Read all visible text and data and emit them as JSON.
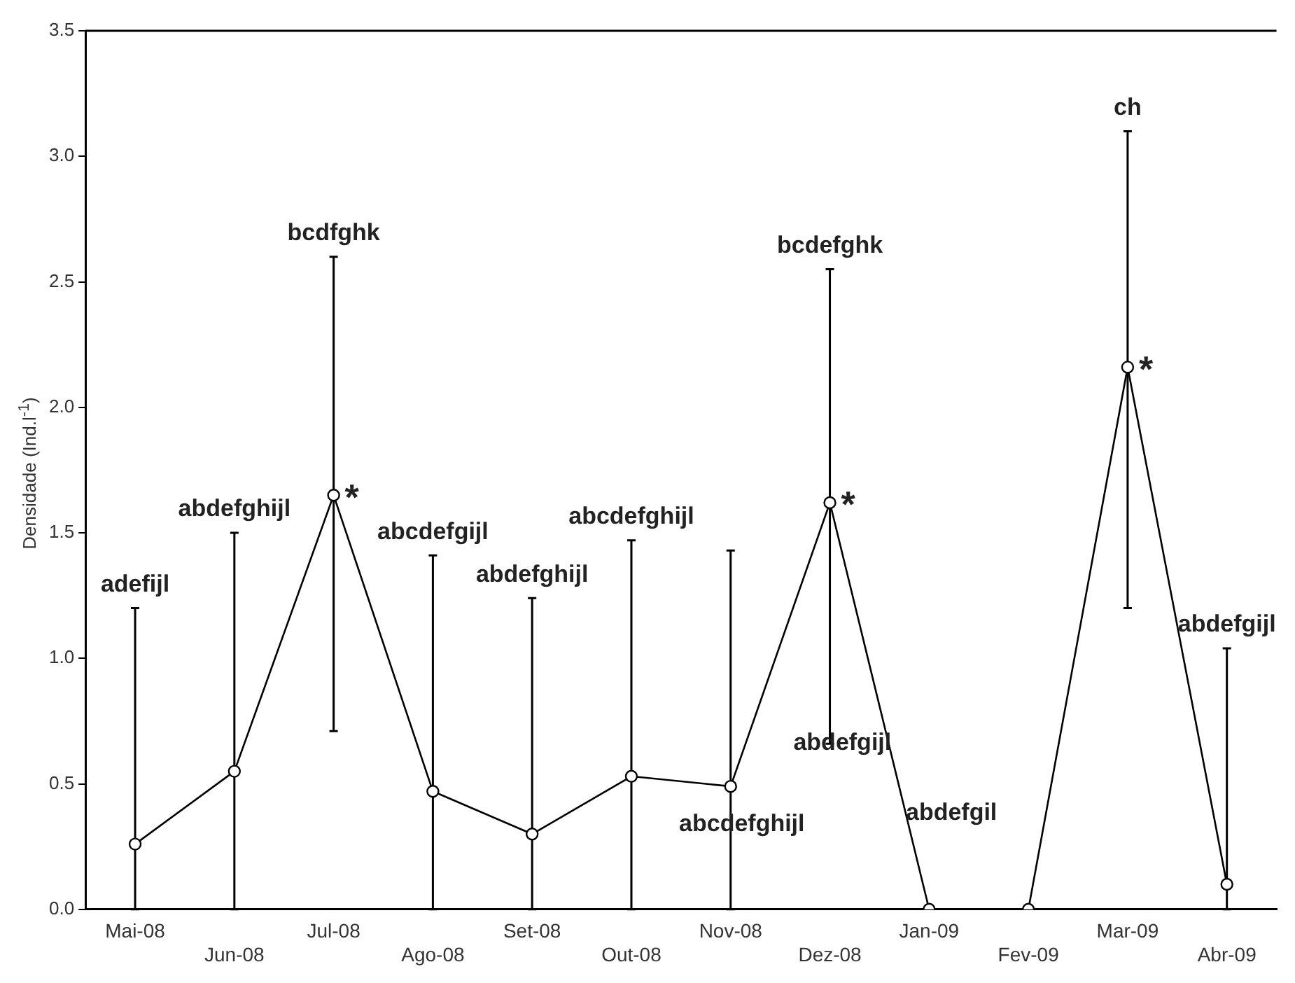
{
  "chart_data": {
    "type": "line",
    "ylabel": "Densidade (Ind.l$^{-1}$)",
    "categories": [
      "Mai-08",
      "Jun-08",
      "Jul-08",
      "Ago-08",
      "Set-08",
      "Out-08",
      "Nov-08",
      "Dez-08",
      "Jan-09",
      "Fev-09",
      "Mar-09",
      "Abr-09"
    ],
    "series": [
      {
        "color": "#000000",
        "values": [
          0.26,
          0.55,
          1.65,
          0.47,
          0.3,
          0.53,
          0.49,
          1.62,
          0,
          0,
          2.16,
          0.1
        ],
        "errors": [
          [
            0,
            1.2
          ],
          [
            0,
            1.5
          ],
          [
            0.71,
            2.6
          ],
          [
            0,
            1.41
          ],
          [
            0,
            1.24
          ],
          [
            0,
            1.47
          ],
          [
            0,
            1.43
          ],
          [
            0.66,
            2.55
          ],
          null,
          null,
          [
            1.2,
            3.1
          ],
          [
            0,
            1.04
          ]
        ]
      }
    ],
    "ylim": [
      0,
      3.5
    ],
    "yticks": [
      {
        "value": 0,
        "label": "0.0"
      },
      {
        "value": 0.5,
        "label": "0.5"
      },
      {
        "value": 1,
        "label": "1.0"
      },
      {
        "value": 1.5,
        "label": "1.5"
      },
      {
        "value": 2,
        "label": "2.0"
      },
      {
        "value": 2.5,
        "label": "2.5"
      },
      {
        "value": 3,
        "label": "3.0"
      },
      {
        "value": 3.5,
        "label": "3.5"
      }
    ],
    "grid": false,
    "legend": false,
    "marker": "circle",
    "line_style": "solid",
    "annotations": [
      "adefijl",
      "abdefghijl",
      "bcdfghk",
      "abcdefgijl",
      "abdefghijl",
      "abcdefghijl",
      "abcdefghijl",
      "bcdefghk",
      "abdefgijl",
      "abdefgil",
      "ch",
      "abdefgijl",
      {
        "text": "*",
        "x": "Jul-08",
        "y": 1.65
      },
      {
        "text": "*",
        "x": "Dez-08",
        "y": 1.62
      },
      {
        "text": "*",
        "x": "Mar-09",
        "y": 2.16
      }
    ]
  }
}
